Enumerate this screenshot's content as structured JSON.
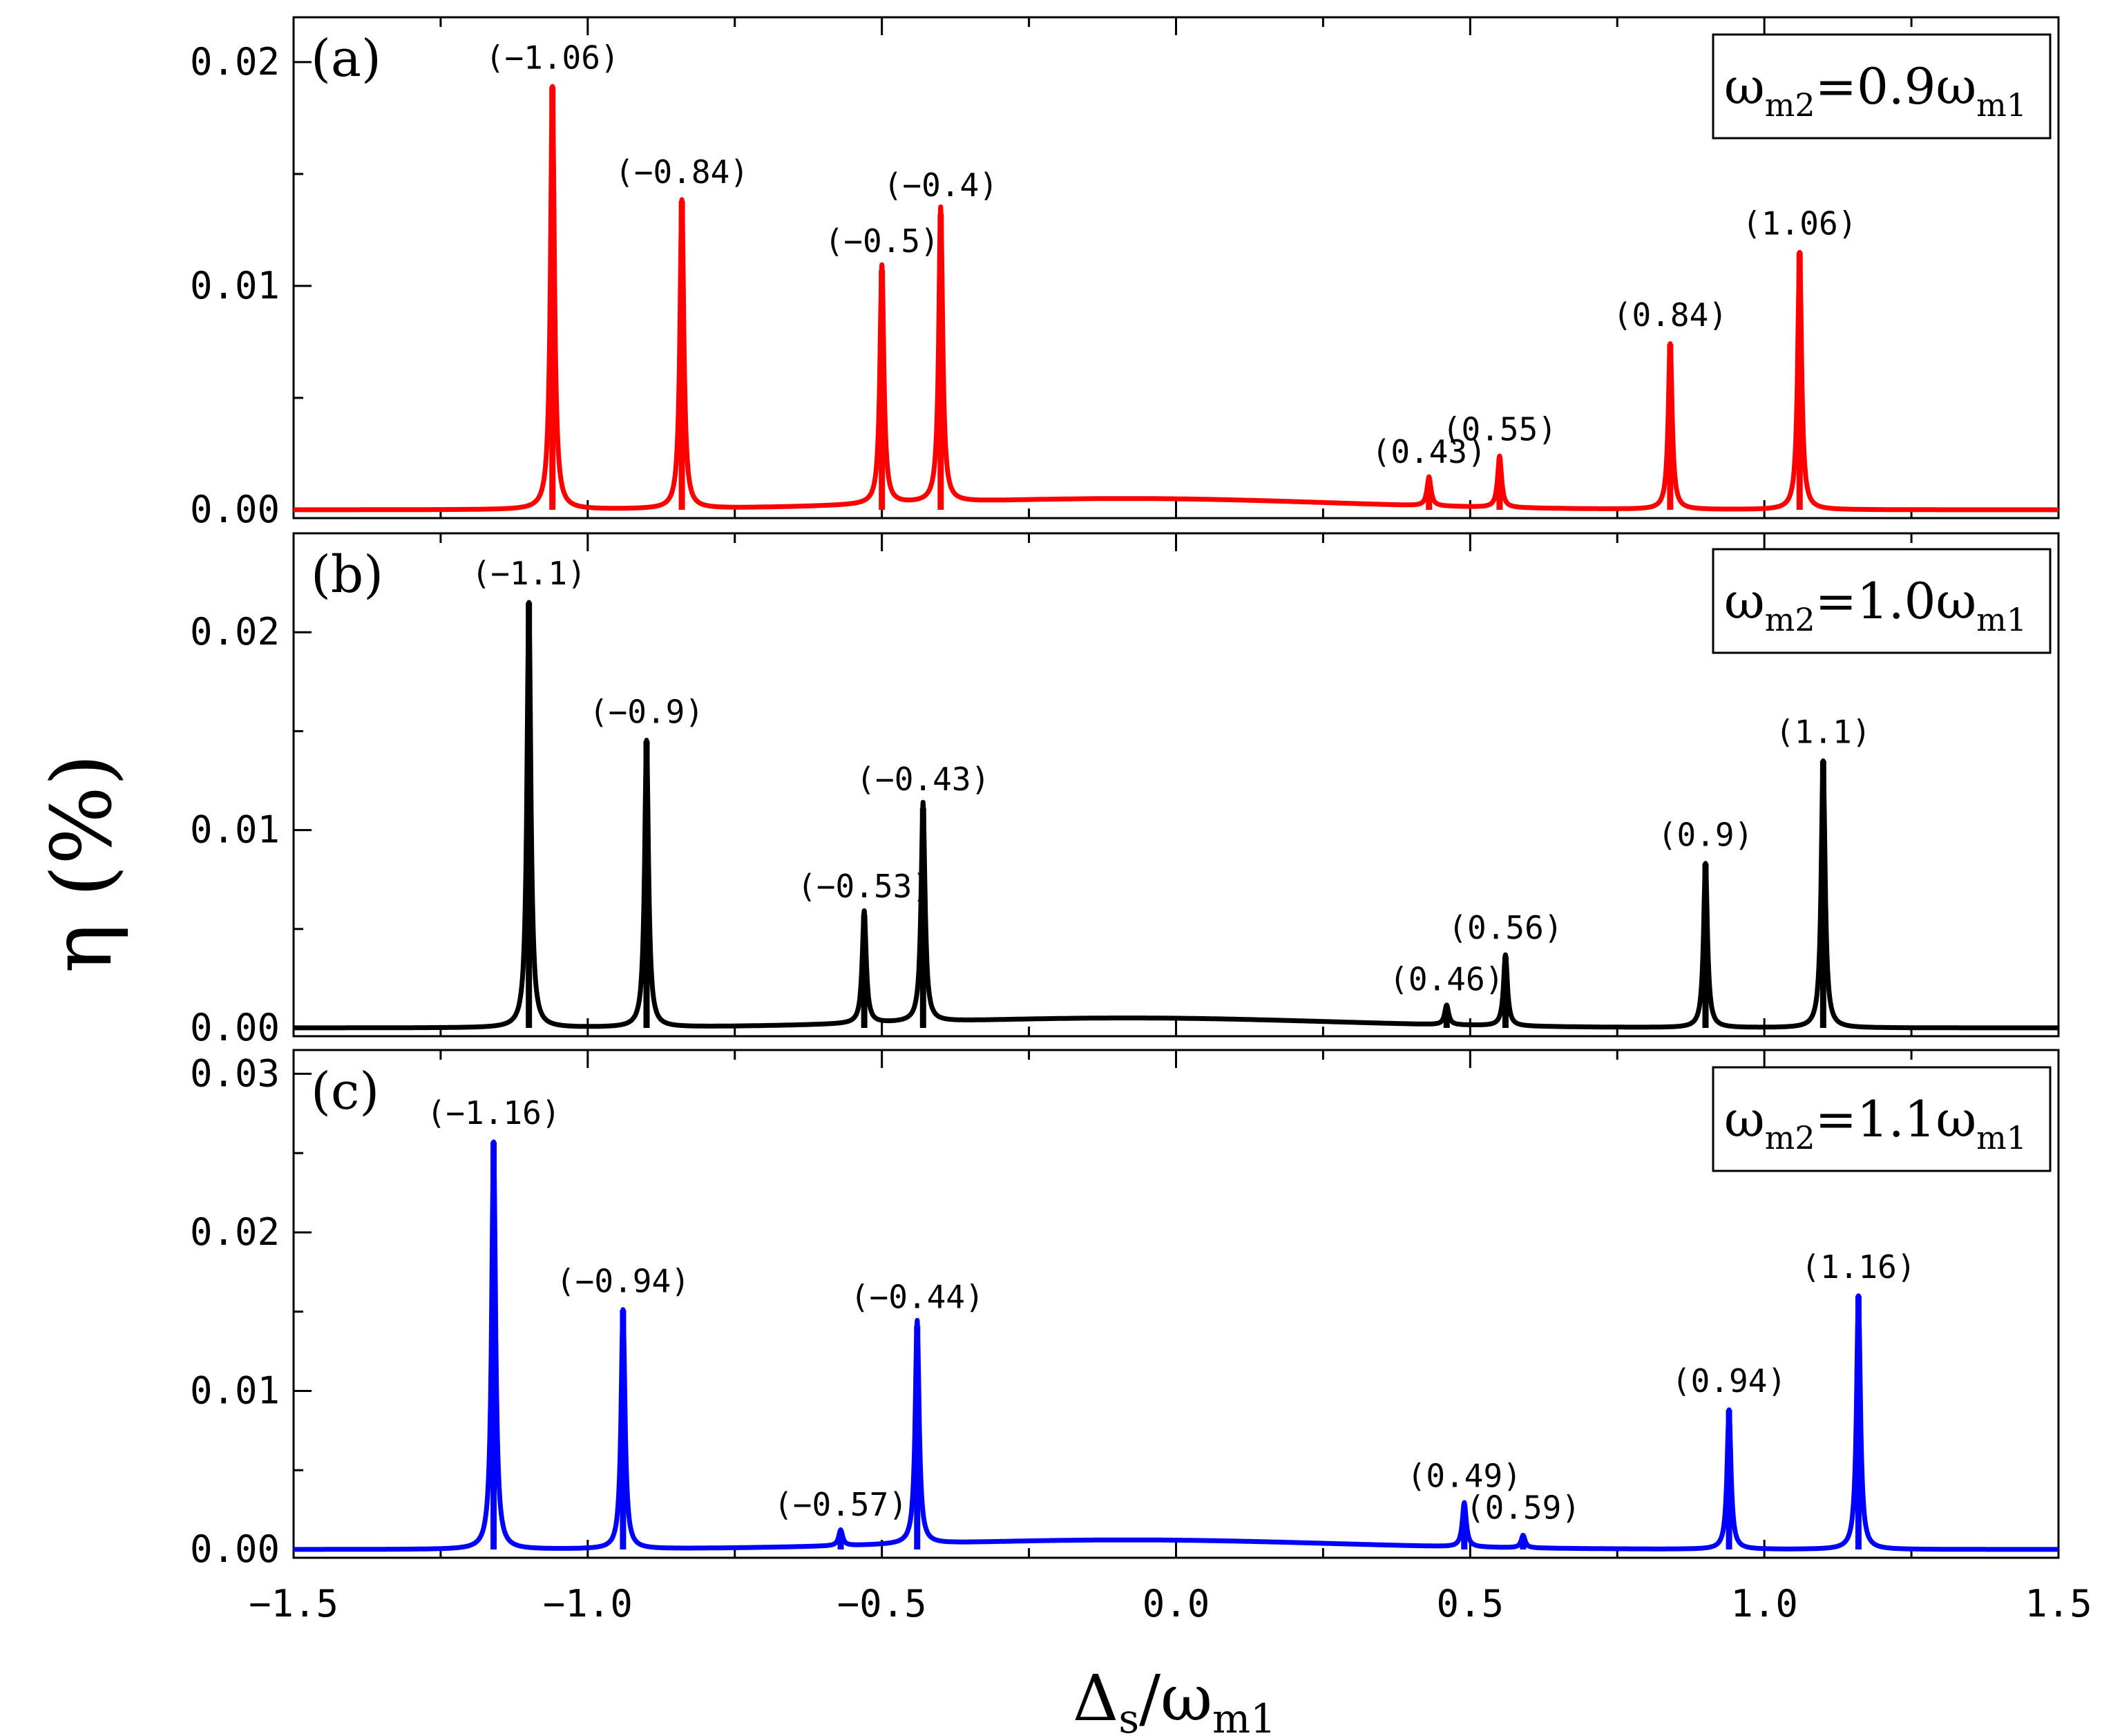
{
  "chart_data": {
    "type": "line",
    "xlabel": "Δs/ωm1",
    "xlabel_parts": {
      "main": "Δ",
      "sub1": "s",
      "slash": "/ω",
      "sub2": "m1"
    },
    "ylabel": "η (%)",
    "xlim": [
      -1.5,
      1.5
    ],
    "xticks": [
      -1.5,
      -1.0,
      -0.5,
      0.0,
      0.5,
      1.0,
      1.5
    ],
    "xtick_labels": [
      "−1.5",
      "−1.0",
      "−0.5",
      "0.0",
      "0.5",
      "1.0",
      "1.5"
    ],
    "panels": [
      {
        "tag": "(a)",
        "legend": {
          "pre": "ω",
          "sub1": "m2",
          "mid": "=0.9ω",
          "sub2": "m1"
        },
        "color": "#ff0000",
        "ylim": [
          0,
          0.022
        ],
        "yticks": [
          0.0,
          0.01,
          0.02
        ],
        "ytick_labels": [
          "0.00",
          "0.01",
          "0.02"
        ],
        "baseline_bump": {
          "center": -0.08,
          "height": 0.0005,
          "width": 0.5
        },
        "peaks": [
          {
            "x": -1.06,
            "y": 0.0189,
            "label": "(−1.06)"
          },
          {
            "x": -0.84,
            "y": 0.0138,
            "label": "(−0.84)"
          },
          {
            "x": -0.5,
            "y": 0.0107,
            "label": "(−0.5)"
          },
          {
            "x": -0.4,
            "y": 0.0132,
            "label": "(−0.4)"
          },
          {
            "x": 0.43,
            "y": 0.0013,
            "label": "(0.43)"
          },
          {
            "x": 0.55,
            "y": 0.0023,
            "label": "(0.55)"
          },
          {
            "x": 0.84,
            "y": 0.0074,
            "label": "(0.84)"
          },
          {
            "x": 1.06,
            "y": 0.0115,
            "label": "(1.06)"
          }
        ]
      },
      {
        "tag": "(b)",
        "legend": {
          "pre": "ω",
          "sub1": "m2",
          "mid": "=1.0ω",
          "sub2": "m1"
        },
        "color": "#000000",
        "ylim": [
          0,
          0.025
        ],
        "yticks": [
          0.0,
          0.01,
          0.02
        ],
        "ytick_labels": [
          "0.00",
          "0.01",
          "0.02"
        ],
        "baseline_bump": {
          "center": -0.08,
          "height": 0.0005,
          "width": 0.5
        },
        "peaks": [
          {
            "x": -1.1,
            "y": 0.0215,
            "label": "(−1.1)"
          },
          {
            "x": -0.9,
            "y": 0.0145,
            "label": "(−0.9)"
          },
          {
            "x": -0.53,
            "y": 0.0057,
            "label": "(−0.53)"
          },
          {
            "x": -0.43,
            "y": 0.0111,
            "label": "(−0.43)"
          },
          {
            "x": 0.46,
            "y": 0.001,
            "label": "(0.46)"
          },
          {
            "x": 0.56,
            "y": 0.0036,
            "label": "(0.56)"
          },
          {
            "x": 0.9,
            "y": 0.0083,
            "label": "(0.9)"
          },
          {
            "x": 1.1,
            "y": 0.0135,
            "label": "(1.1)"
          }
        ]
      },
      {
        "tag": "(c)",
        "legend": {
          "pre": "ω",
          "sub1": "m2",
          "mid": "=1.1ω",
          "sub2": "m1"
        },
        "color": "#0000ff",
        "ylim": [
          0,
          0.0315
        ],
        "yticks": [
          0.0,
          0.01,
          0.02,
          0.03
        ],
        "ytick_labels": [
          "0.00",
          "0.01",
          "0.02",
          "0.03"
        ],
        "baseline_bump": {
          "center": -0.08,
          "height": 0.0006,
          "width": 0.5
        },
        "peaks": [
          {
            "x": -1.16,
            "y": 0.0257,
            "label": "(−1.16)"
          },
          {
            "x": -0.94,
            "y": 0.0151,
            "label": "(−0.94)"
          },
          {
            "x": -0.57,
            "y": 0.001,
            "label": "(−0.57)"
          },
          {
            "x": -0.44,
            "y": 0.0141,
            "label": "(−0.44)"
          },
          {
            "x": 0.49,
            "y": 0.0028,
            "label": "(0.49)"
          },
          {
            "x": 0.59,
            "y": 0.0008,
            "label": "(0.59)"
          },
          {
            "x": 0.94,
            "y": 0.0088,
            "label": "(0.94)"
          },
          {
            "x": 1.16,
            "y": 0.016,
            "label": "(1.16)"
          }
        ]
      }
    ]
  }
}
